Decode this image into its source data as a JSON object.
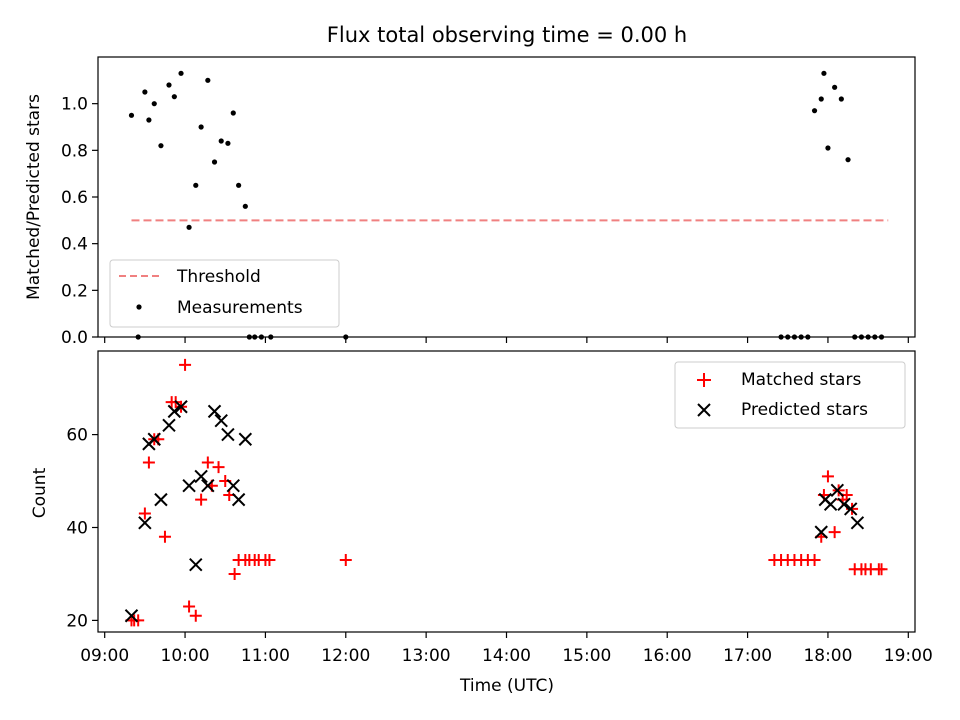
{
  "chart_data": [
    {
      "type": "scatter",
      "title": "Flux total observing time = 0.00 h",
      "xlabel": "",
      "ylabel": "Matched/Predicted stars",
      "xlim": [
        "08:55",
        "19:05"
      ],
      "ylim": [
        0,
        1.2
      ],
      "yticks": [
        0.0,
        0.2,
        0.4,
        0.6,
        0.8,
        1.0
      ],
      "ytick_labels": [
        "0.0",
        "0.2",
        "0.4",
        "0.6",
        "0.8",
        "1.0"
      ],
      "grid": false,
      "legend": "lower-left",
      "series": [
        {
          "name": "Threshold",
          "kind": "line",
          "color": "#f08080",
          "dash": true,
          "x": [
            "09:20",
            "18:45"
          ],
          "y": [
            0.5,
            0.5
          ]
        },
        {
          "name": "Measurements",
          "kind": "dot",
          "color": "#000000",
          "x": [
            "09:20",
            "09:25",
            "09:30",
            "09:33",
            "09:37",
            "09:42",
            "09:48",
            "09:52",
            "09:57",
            "10:03",
            "10:08",
            "10:12",
            "10:17",
            "10:22",
            "10:27",
            "10:32",
            "10:36",
            "10:40",
            "10:45",
            "10:48",
            "10:52",
            "10:57",
            "11:04",
            "12:00",
            "17:25",
            "17:30",
            "17:35",
            "17:40",
            "17:45",
            "17:50",
            "17:55",
            "17:57",
            "18:00",
            "18:05",
            "18:10",
            "18:15",
            "18:20",
            "18:25",
            "18:30",
            "18:35",
            "18:40"
          ],
          "y": [
            0.95,
            0.0,
            1.05,
            0.93,
            1.0,
            0.82,
            1.08,
            1.03,
            1.13,
            0.47,
            0.65,
            0.9,
            1.1,
            0.75,
            0.84,
            0.83,
            0.96,
            0.65,
            0.56,
            0.0,
            0.0,
            0.0,
            0.0,
            0.0,
            0.0,
            0.0,
            0.0,
            0.0,
            0.0,
            0.97,
            1.02,
            1.13,
            0.81,
            1.07,
            1.02,
            0.76,
            0.0,
            0.0,
            0.0,
            0.0,
            0.0
          ]
        }
      ]
    },
    {
      "type": "scatter",
      "title": "",
      "xlabel": "Time (UTC)",
      "ylabel": "Count",
      "xlim": [
        "08:55",
        "19:05"
      ],
      "ylim": [
        17.5,
        78
      ],
      "xticks": [
        "09:00",
        "10:00",
        "11:00",
        "12:00",
        "13:00",
        "14:00",
        "15:00",
        "16:00",
        "17:00",
        "18:00",
        "19:00"
      ],
      "yticks": [
        20,
        40,
        60
      ],
      "ytick_labels": [
        "20",
        "40",
        "60"
      ],
      "grid": false,
      "legend": "top-right",
      "series": [
        {
          "name": "Matched stars",
          "kind": "plus",
          "color": "#ff0000",
          "x": [
            "09:20",
            "09:22",
            "09:25",
            "09:30",
            "09:33",
            "09:37",
            "09:40",
            "09:45",
            "09:50",
            "09:53",
            "09:57",
            "10:00",
            "10:03",
            "10:08",
            "10:12",
            "10:17",
            "10:20",
            "10:25",
            "10:30",
            "10:33",
            "10:37",
            "10:40",
            "10:45",
            "10:48",
            "10:52",
            "10:55",
            "11:00",
            "11:03",
            "12:00",
            "17:20",
            "17:25",
            "17:30",
            "17:35",
            "17:40",
            "17:45",
            "17:50",
            "17:55",
            "17:57",
            "18:00",
            "18:05",
            "18:08",
            "18:11",
            "18:14",
            "18:18",
            "18:20",
            "18:25",
            "18:28",
            "18:32",
            "18:38",
            "18:40"
          ],
          "y": [
            20,
            20,
            20,
            43,
            54,
            59,
            59,
            38,
            67,
            67,
            66,
            75,
            23,
            21,
            46,
            54,
            49,
            53,
            50,
            47,
            30,
            33,
            33,
            33,
            33,
            33,
            33,
            33,
            33,
            33,
            33,
            33,
            33,
            33,
            33,
            33,
            38,
            47,
            51,
            39,
            48,
            46,
            47,
            44,
            31,
            31,
            31,
            31,
            31,
            31
          ]
        },
        {
          "name": "Predicted stars",
          "kind": "x",
          "color": "#000000",
          "x": [
            "09:20",
            "09:30",
            "09:33",
            "09:37",
            "09:42",
            "09:48",
            "09:52",
            "09:57",
            "10:03",
            "10:08",
            "10:12",
            "10:17",
            "10:22",
            "10:27",
            "10:32",
            "10:36",
            "10:40",
            "10:45",
            "17:55",
            "17:58",
            "18:02",
            "18:07",
            "18:12",
            "18:17",
            "18:22"
          ],
          "y": [
            21,
            41,
            58,
            59,
            46,
            62,
            65,
            66,
            49,
            32,
            51,
            49,
            65,
            63,
            60,
            49,
            46,
            59,
            39,
            46,
            45,
            48,
            45,
            44,
            41
          ]
        }
      ]
    }
  ]
}
